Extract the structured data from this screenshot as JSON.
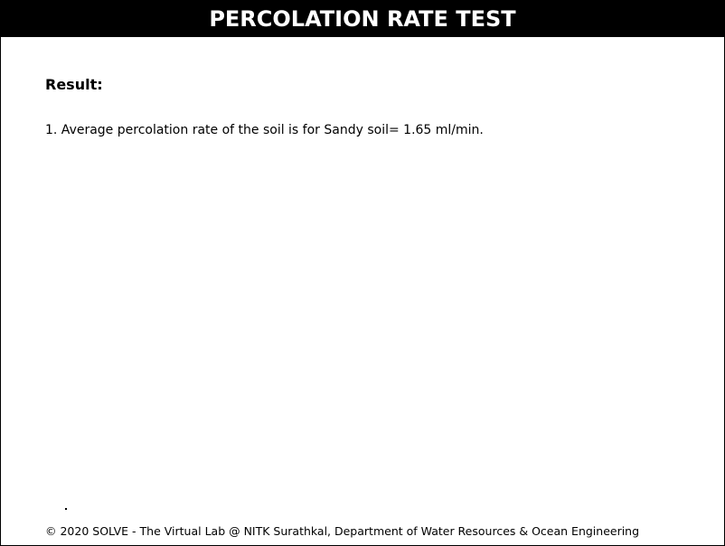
{
  "header": {
    "title": "PERCOLATION RATE TEST"
  },
  "result": {
    "heading": "Result:",
    "lines": [
      "1. Average percolation rate of the soil is for Sandy soil= 1.65 ml/min."
    ]
  },
  "footer": {
    "copyright": "© 2020 SOLVE - The Virtual Lab @ NITK Surathkal, Department of Water Resources & Ocean Engineering"
  },
  "colors": {
    "header_background": "#000000",
    "header_text": "#ffffff",
    "page_background": "#ffffff"
  }
}
